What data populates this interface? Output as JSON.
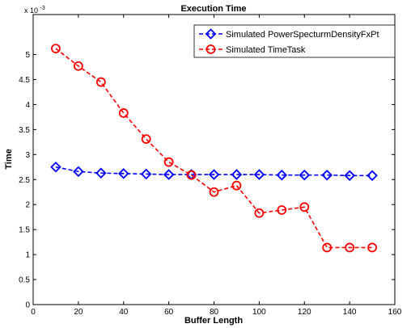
{
  "chart_data": {
    "type": "line",
    "title": "Execution Time",
    "xlabel": "Buffer Length",
    "ylabel": "Time",
    "y_scale_note": "x 10",
    "y_scale_exp": "-3",
    "xlim": [
      0,
      160
    ],
    "ylim": [
      0,
      0.0058
    ],
    "x_ticks": [
      0,
      20,
      40,
      60,
      80,
      100,
      120,
      140,
      160
    ],
    "y_ticks": [
      0,
      0.0005,
      0.001,
      0.0015,
      0.002,
      0.0025,
      0.003,
      0.0035,
      0.004,
      0.0045,
      0.005
    ],
    "y_tick_labels": [
      "0",
      "0.5",
      "1",
      "1.5",
      "2",
      "2.5",
      "3",
      "3.5",
      "4",
      "4.5",
      "5"
    ],
    "grid": false,
    "legend_position": "top-right",
    "x": [
      10,
      20,
      30,
      40,
      50,
      60,
      70,
      80,
      90,
      100,
      110,
      120,
      130,
      140,
      150
    ],
    "series": [
      {
        "name": "Simulated PowerSpecturmDensityFxPt",
        "color": "#0000ff",
        "marker": "diamond",
        "values": [
          0.00275,
          0.00266,
          0.00263,
          0.00262,
          0.00261,
          0.0026,
          0.0026,
          0.0026,
          0.0026,
          0.0026,
          0.00259,
          0.00259,
          0.00259,
          0.00258,
          0.00258
        ]
      },
      {
        "name": "Simulated TimeTask",
        "color": "#ff0000",
        "marker": "circle",
        "values": [
          0.00512,
          0.00477,
          0.00445,
          0.00383,
          0.00331,
          0.00285,
          0.00259,
          0.00225,
          0.00238,
          0.00183,
          0.00189,
          0.00195,
          0.00114,
          0.00114,
          0.00114
        ]
      }
    ]
  }
}
